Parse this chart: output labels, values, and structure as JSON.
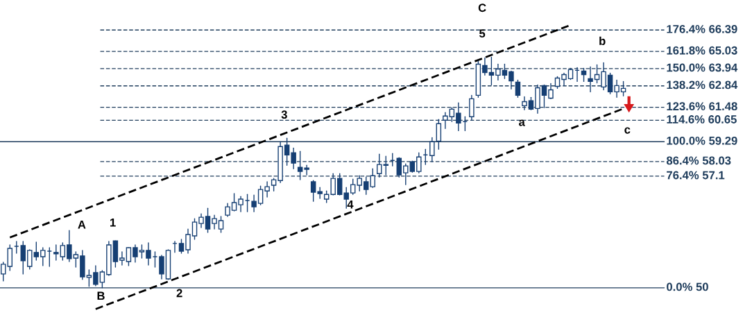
{
  "chart_data": {
    "type": "candlestick",
    "categories": [
      null,
      null,
      null,
      null,
      null,
      null,
      null,
      null,
      null,
      null,
      null,
      null,
      null,
      null,
      null,
      null,
      null,
      null,
      null,
      null,
      null,
      null,
      null,
      null,
      null,
      null,
      null,
      null,
      null,
      null,
      null,
      null,
      null,
      null,
      null,
      null,
      null,
      null,
      null,
      null,
      null,
      null,
      null,
      null,
      null,
      null,
      null,
      null,
      null,
      null,
      null,
      null,
      null,
      null,
      null,
      null,
      null,
      null,
      null,
      null,
      null,
      null,
      null,
      null,
      null,
      null,
      null,
      null,
      null,
      null,
      null,
      null,
      null,
      null,
      null,
      null,
      null,
      null,
      null,
      null,
      null,
      null,
      null,
      null,
      null,
      null,
      null,
      null,
      null,
      null,
      null,
      null,
      null,
      null,
      null
    ],
    "ylim": [
      47.7,
      68.3
    ],
    "tick_labels": false,
    "series": [
      {
        "color": "#163f73",
        "ohlc": [
          [
            50.88,
            51.63,
            50.44,
            51.5
          ],
          [
            51.36,
            52.73,
            51.1,
            52.51
          ],
          [
            52.64,
            52.95,
            52.2,
            52.64
          ],
          [
            52.69,
            52.95,
            50.88,
            51.72
          ],
          [
            51.36,
            52.42,
            51.19,
            52.38
          ],
          [
            52.25,
            52.91,
            51.76,
            51.98
          ],
          [
            51.98,
            52.55,
            51.41,
            52.38
          ],
          [
            52.33,
            52.55,
            51.36,
            52.33
          ],
          [
            52.25,
            52.73,
            51.76,
            52.16
          ],
          [
            51.98,
            52.86,
            51.76,
            52.69
          ],
          [
            52.73,
            53.65,
            51.67,
            51.85
          ],
          [
            51.89,
            52.29,
            51.32,
            52.11
          ],
          [
            52.03,
            52.38,
            50.53,
            50.7
          ],
          [
            50.66,
            51.14,
            50.09,
            50.79
          ],
          [
            50.97,
            51.41,
            50.13,
            50.22
          ],
          [
            50.35,
            51.1,
            50.0,
            51.01
          ],
          [
            50.84,
            52.95,
            50.79,
            52.73
          ],
          [
            52.99,
            52.99,
            51.32,
            51.67
          ],
          [
            51.76,
            52.29,
            51.45,
            51.89
          ],
          [
            51.67,
            52.55,
            51.41,
            52.55
          ],
          [
            52.55,
            52.73,
            51.63,
            51.98
          ],
          [
            52.29,
            52.73,
            51.89,
            52.38
          ],
          [
            52.38,
            52.86,
            51.45,
            51.89
          ],
          [
            51.98,
            52.29,
            51.32,
            51.98
          ],
          [
            51.98,
            52.07,
            50.57,
            50.88
          ],
          [
            50.57,
            52.42,
            50.53,
            52.38
          ],
          [
            52.82,
            52.95,
            52.25,
            52.82
          ],
          [
            52.82,
            53.08,
            52.2,
            52.33
          ],
          [
            52.42,
            53.74,
            52.2,
            53.39
          ],
          [
            53.3,
            54.4,
            53.08,
            54.18
          ],
          [
            54.09,
            54.71,
            53.83,
            54.49
          ],
          [
            54.54,
            55.06,
            53.52,
            53.74
          ],
          [
            54.09,
            54.62,
            53.74,
            54.4
          ],
          [
            53.74,
            54.54,
            53.52,
            54.27
          ],
          [
            54.62,
            55.37,
            54.54,
            55.15
          ],
          [
            54.93,
            55.99,
            54.89,
            55.42
          ],
          [
            55.28,
            55.81,
            54.84,
            55.64
          ],
          [
            55.55,
            55.94,
            54.84,
            55.55
          ],
          [
            55.5,
            55.9,
            54.84,
            55.15
          ],
          [
            55.37,
            56.47,
            55.28,
            56.25
          ],
          [
            56.16,
            56.74,
            55.77,
            56.43
          ],
          [
            56.52,
            56.96,
            56.16,
            56.87
          ],
          [
            56.82,
            59.29,
            56.69,
            58.98
          ],
          [
            59.07,
            59.51,
            57.79,
            58.45
          ],
          [
            58.59,
            58.89,
            57.57,
            57.93
          ],
          [
            57.66,
            58.67,
            56.87,
            57.4
          ],
          [
            57.62,
            57.79,
            57.18,
            57.53
          ],
          [
            56.74,
            56.82,
            55.5,
            56.08
          ],
          [
            56.12,
            56.38,
            55.68,
            55.99
          ],
          [
            55.64,
            56.16,
            55.42,
            55.94
          ],
          [
            55.94,
            57.26,
            55.9,
            56.96
          ],
          [
            56.96,
            57.26,
            55.9,
            55.94
          ],
          [
            56.03,
            56.38,
            55.06,
            55.64
          ],
          [
            56.03,
            56.91,
            55.94,
            56.56
          ],
          [
            56.52,
            57.13,
            56.16,
            56.96
          ],
          [
            56.74,
            57.04,
            55.94,
            56.25
          ],
          [
            56.43,
            57.57,
            56.38,
            57.13
          ],
          [
            57.26,
            58.5,
            57.04,
            57.84
          ],
          [
            57.79,
            58.37,
            57.18,
            57.84
          ],
          [
            58.1,
            58.54,
            57.75,
            58.1
          ],
          [
            58.23,
            58.28,
            57.04,
            57.18
          ],
          [
            57.31,
            57.88,
            56.56,
            57.75
          ],
          [
            58.01,
            58.06,
            57.35,
            57.4
          ],
          [
            57.4,
            58.59,
            57.31,
            58.32
          ],
          [
            58.45,
            58.81,
            57.84,
            58.45
          ],
          [
            58.41,
            59.55,
            58.01,
            59.29
          ],
          [
            59.33,
            60.7,
            58.81,
            60.44
          ],
          [
            60.66,
            61.14,
            60.13,
            60.92
          ],
          [
            60.88,
            61.45,
            60.57,
            61.36
          ],
          [
            61.1,
            61.76,
            59.99,
            60.48
          ],
          [
            60.57,
            60.88,
            59.99,
            60.57
          ],
          [
            60.88,
            62.24,
            60.66,
            62.02
          ],
          [
            62.24,
            64.4,
            62.11,
            64.22
          ],
          [
            64.13,
            64.62,
            63.52,
            63.69
          ],
          [
            63.69,
            64.66,
            62.9,
            63.52
          ],
          [
            63.52,
            64.22,
            63.21,
            63.91
          ],
          [
            63.83,
            64.22,
            63.3,
            63.52
          ],
          [
            63.74,
            63.78,
            62.64,
            63.16
          ],
          [
            63.08,
            63.21,
            62.11,
            62.24
          ],
          [
            61.58,
            62.15,
            61.32,
            61.84
          ],
          [
            61.89,
            62.11,
            61.32,
            61.36
          ],
          [
            61.4,
            62.9,
            61.1,
            62.72
          ],
          [
            62.86,
            62.9,
            61.45,
            62.24
          ],
          [
            62.06,
            62.99,
            62.02,
            62.59
          ],
          [
            62.81,
            63.43,
            62.68,
            63.34
          ],
          [
            63.25,
            63.65,
            62.86,
            63.56
          ],
          [
            63.3,
            63.96,
            63.25,
            63.87
          ],
          [
            63.83,
            64.0,
            63.12,
            63.83
          ],
          [
            63.78,
            63.96,
            63.12,
            63.56
          ],
          [
            63.3,
            64.05,
            62.46,
            63.12
          ],
          [
            63.25,
            64.18,
            63.03,
            63.56
          ],
          [
            62.77,
            64.31,
            62.59,
            63.74
          ],
          [
            63.52,
            63.65,
            62.33,
            62.46
          ],
          [
            62.46,
            63.21,
            62.11,
            62.86
          ],
          [
            62.46,
            63.12,
            62.2,
            62.68
          ]
        ]
      },
      {
        "type": "line",
        "values": [
          null,
          53.2,
          null,
          null,
          null,
          null,
          null,
          null,
          null,
          null,
          null,
          null,
          null,
          null,
          null,
          null,
          null,
          null,
          null,
          null,
          null,
          null,
          null,
          null,
          null,
          null,
          null,
          null,
          null,
          null,
          null,
          null,
          null,
          null,
          null,
          null,
          null,
          null,
          null,
          null,
          null,
          null,
          null,
          null,
          null,
          null,
          null,
          null,
          null,
          null,
          null,
          null,
          null,
          null,
          null,
          null,
          null,
          null,
          null,
          null,
          null,
          null,
          null,
          null,
          null,
          null,
          null,
          null,
          null,
          null,
          null,
          null,
          null,
          null,
          null,
          null,
          null,
          null,
          null,
          null,
          null,
          null,
          null,
          null,
          null,
          null,
          66.71,
          null,
          null,
          null,
          null,
          null,
          null,
          null,
          null
        ],
        "color": "#000000",
        "line_style": "dashed"
      },
      {
        "type": "line",
        "values": [
          null,
          null,
          null,
          null,
          null,
          null,
          null,
          null,
          null,
          null,
          null,
          null,
          null,
          null,
          48.65,
          null,
          null,
          null,
          null,
          null,
          null,
          null,
          null,
          null,
          null,
          null,
          null,
          null,
          null,
          null,
          null,
          null,
          null,
          null,
          null,
          null,
          null,
          null,
          null,
          null,
          null,
          null,
          null,
          null,
          null,
          null,
          null,
          null,
          null,
          null,
          null,
          null,
          null,
          null,
          null,
          null,
          null,
          null,
          null,
          null,
          null,
          null,
          null,
          null,
          null,
          null,
          null,
          null,
          null,
          null,
          null,
          null,
          null,
          null,
          null,
          null,
          null,
          null,
          null,
          null,
          null,
          null,
          null,
          null,
          null,
          null,
          null,
          null,
          null,
          null,
          null,
          null,
          null,
          null,
          61.39
        ],
        "color": "#000000",
        "line_style": "dashed"
      }
    ],
    "ref_lines": [
      {
        "axis": "y",
        "value": 66.39,
        "label": "176.4% 66.39",
        "color": "#1f3d5c",
        "line_style": "dashed"
      },
      {
        "axis": "y",
        "value": 65.03,
        "label": "161.8% 65.03",
        "color": "#1f3d5c",
        "line_style": "dashed"
      },
      {
        "axis": "y",
        "value": 63.94,
        "label": "150.0% 63.94",
        "color": "#1f3d5c",
        "line_style": "dashed"
      },
      {
        "axis": "y",
        "value": 62.84,
        "label": "138.2% 62.84",
        "color": "#1f3d5c",
        "line_style": "dashed"
      },
      {
        "axis": "y",
        "value": 61.48,
        "label": "123.6% 61.48",
        "color": "#1f3d5c",
        "line_style": "dashed"
      },
      {
        "axis": "y",
        "value": 60.65,
        "label": "114.6% 60.65",
        "color": "#1f3d5c",
        "line_style": "dashed"
      },
      {
        "axis": "y",
        "value": 59.29,
        "label": "100.0% 59.29",
        "color": "#1f3d5c",
        "line_style": "solid"
      },
      {
        "axis": "y",
        "value": 58.03,
        "label": "86.4% 58.03",
        "color": "#1f3d5c",
        "line_style": "dashed"
      },
      {
        "axis": "y",
        "value": 57.1,
        "label": "76.4% 57.1",
        "color": "#1f3d5c",
        "line_style": "dashed"
      },
      {
        "axis": "y",
        "value": 50,
        "label": "0.0% 50",
        "color": "#1f3d5c",
        "line_style": "solid"
      }
    ],
    "annotations": [
      "A",
      "1",
      "B",
      "2",
      "3",
      "4",
      "5",
      "C",
      "a",
      "b",
      "c"
    ]
  }
}
